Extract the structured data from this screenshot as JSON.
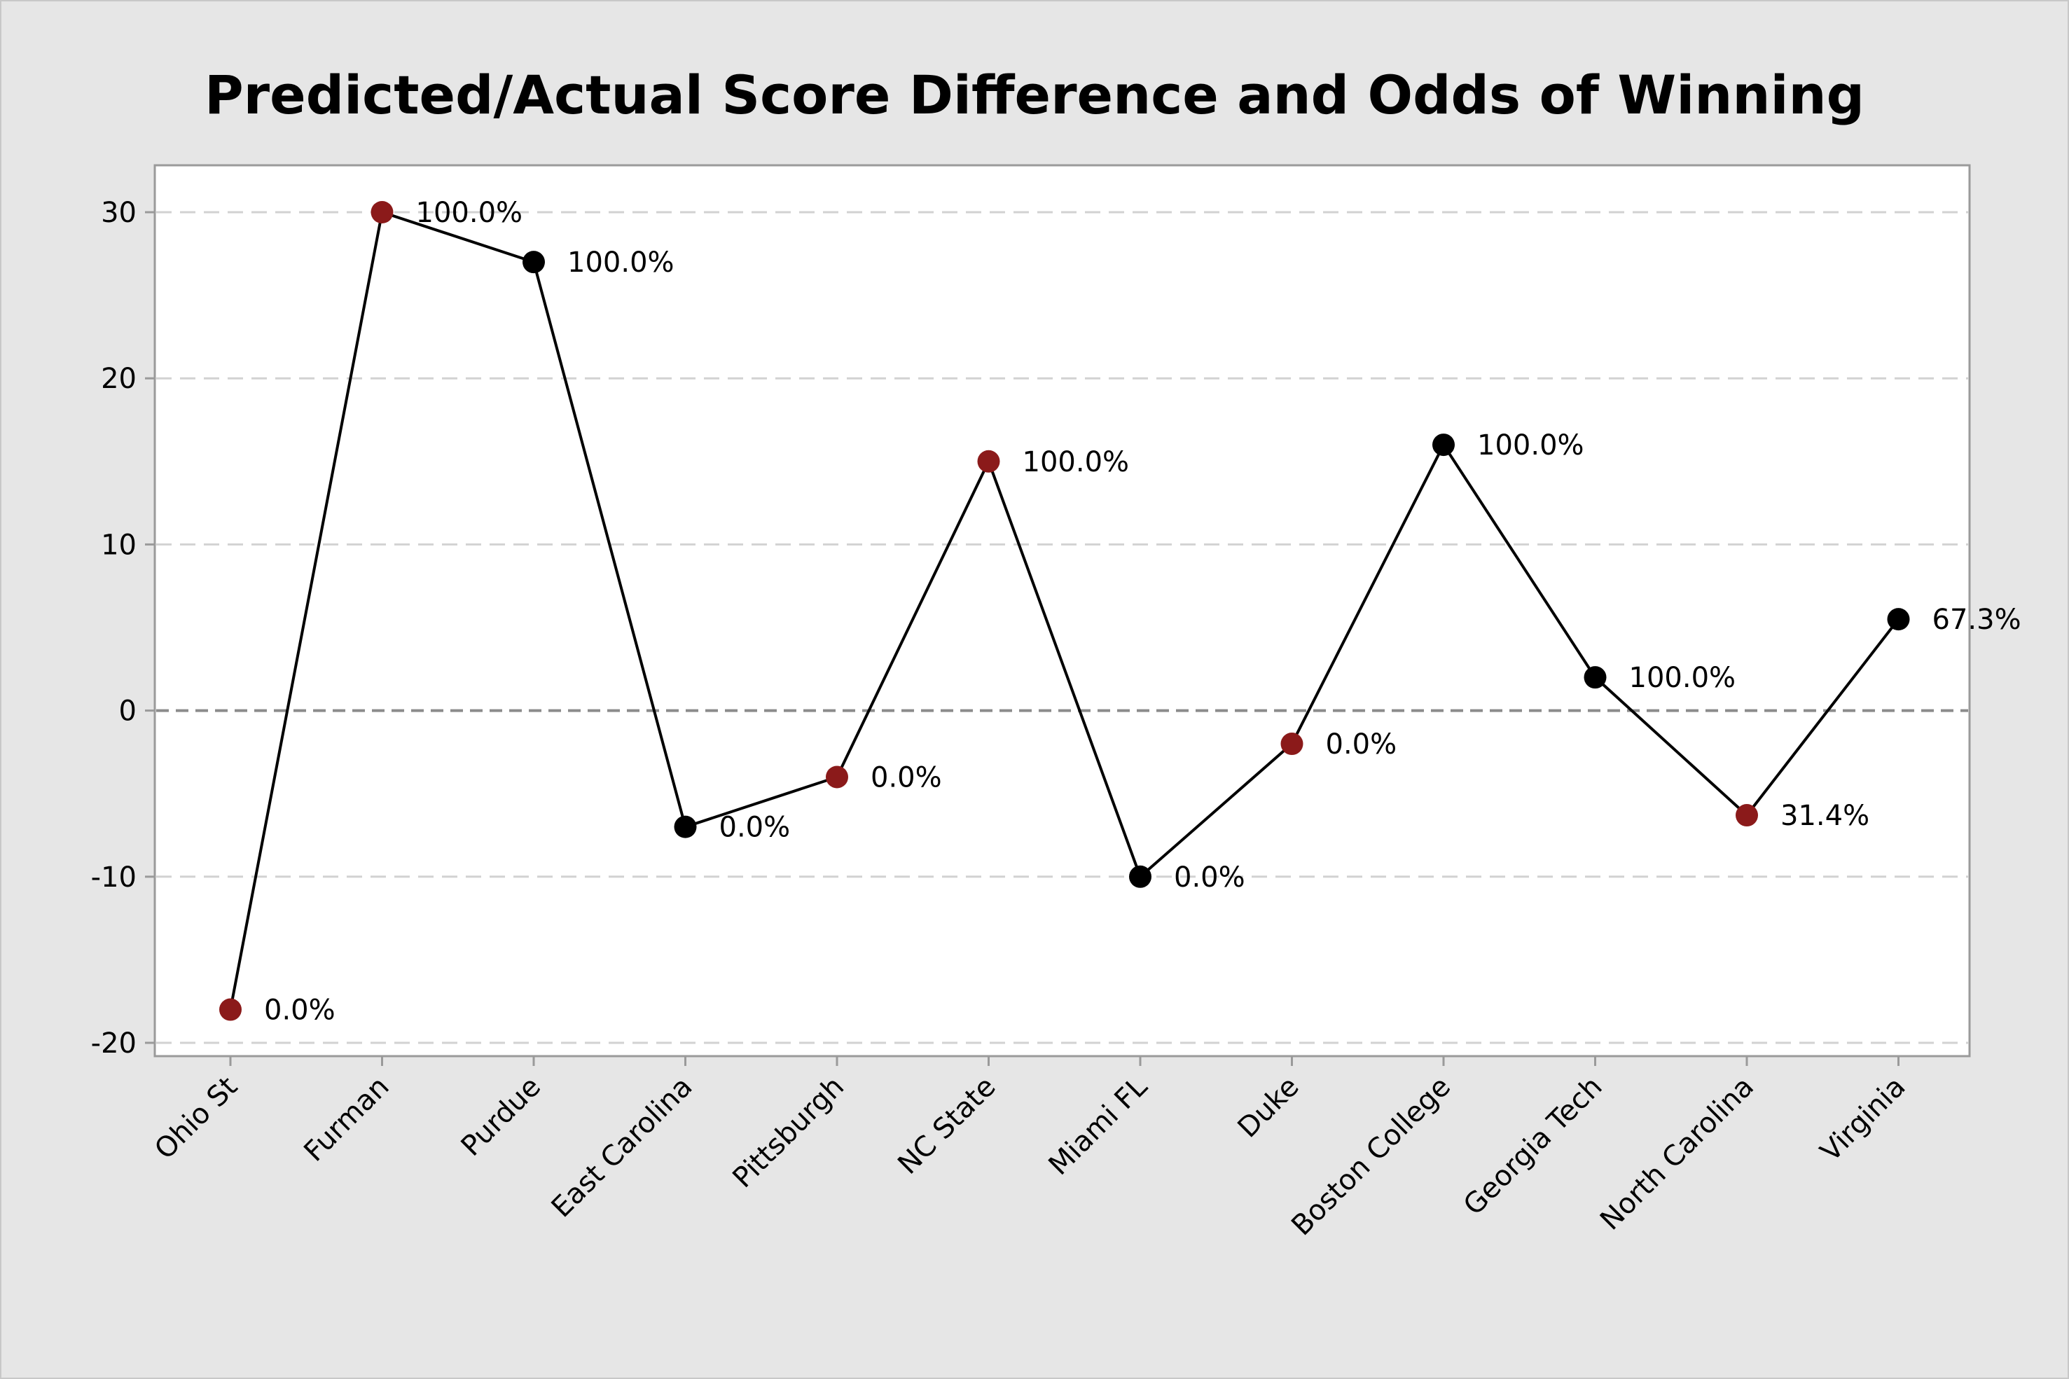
{
  "chart_data": {
    "type": "line",
    "title": "Predicted/Actual Score Difference and Odds of Winning",
    "xlabel": "",
    "ylabel": "",
    "ylim": [
      -21,
      33
    ],
    "yticks": [
      30,
      20,
      10,
      0,
      -10,
      -20
    ],
    "grid": "horizontal dashed",
    "categories": [
      "Ohio St",
      "Furman",
      "Purdue",
      "East Carolina",
      "Pittsburgh",
      "NC State",
      "Miami FL",
      "Duke",
      "Boston College",
      "Georgia Tech",
      "North Carolina",
      "Virginia"
    ],
    "values": [
      -18,
      30,
      27,
      -7,
      -4,
      15,
      -10,
      -2,
      16,
      2,
      -6.3,
      5.5
    ],
    "labels": [
      "0.0%",
      "100.0%",
      "100.0%",
      "0.0%",
      "0.0%",
      "100.0%",
      "0.0%",
      "0.0%",
      "100.0%",
      "100.0%",
      "31.4%",
      "67.3%"
    ],
    "point_colors": [
      "#8b1a1a",
      "#8b1a1a",
      "#000000",
      "#000000",
      "#8b1a1a",
      "#8b1a1a",
      "#000000",
      "#8b1a1a",
      "#000000",
      "#000000",
      "#8b1a1a",
      "#000000"
    ],
    "colors": {
      "line": "#000000",
      "red_marker": "#8b1a1a",
      "black_marker": "#000000",
      "grid": "#d2d2d2",
      "zero_line": "#8c8c8c",
      "plot_background": "#ffffff",
      "figure_background": "#e6e6e6"
    }
  }
}
